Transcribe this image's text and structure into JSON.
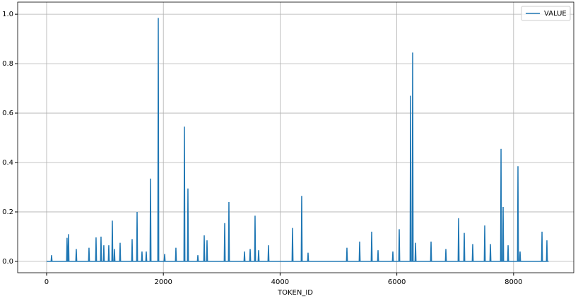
{
  "chart_data": {
    "type": "line",
    "xlabel": "TOKEN_ID",
    "x": [
      0,
      77,
      85,
      93,
      342,
      350,
      358,
      367,
      375,
      383,
      500,
      508,
      516,
      718,
      726,
      734,
      839,
      847,
      855,
      924,
      932,
      940,
      972,
      980,
      988,
      1057,
      1065,
      1073,
      1118,
      1126,
      1134,
      1154,
      1162,
      1170,
      1251,
      1259,
      1267,
      1457,
      1465,
      1473,
      1542,
      1550,
      1558,
      1626,
      1634,
      1642,
      1699,
      1707,
      1715,
      1772,
      1780,
      1788,
      1905,
      1913,
      1921,
      2014,
      2022,
      2030,
      2207,
      2215,
      2223,
      2353,
      2361,
      2369,
      2413,
      2421,
      2429,
      2583,
      2591,
      2599,
      2692,
      2700,
      2708,
      2740,
      2748,
      2756,
      3043,
      3051,
      3059,
      3115,
      3123,
      3131,
      3382,
      3390,
      3398,
      3479,
      3487,
      3495,
      3563,
      3571,
      3579,
      3624,
      3632,
      3640,
      3793,
      3801,
      3809,
      4205,
      4213,
      4221,
      4362,
      4370,
      4378,
      4471,
      4479,
      4487,
      5137,
      5145,
      5153,
      5355,
      5363,
      5371,
      5561,
      5569,
      5577,
      5670,
      5678,
      5686,
      5924,
      5932,
      5940,
      6033,
      6041,
      6049,
      6227,
      6235,
      6243,
      6263,
      6271,
      6279,
      6312,
      6320,
      6328,
      6578,
      6586,
      6594,
      6832,
      6840,
      6848,
      7050,
      7058,
      7066,
      7147,
      7155,
      7163,
      7292,
      7300,
      7308,
      7498,
      7506,
      7514,
      7595,
      7603,
      7611,
      7777,
      7785,
      7793,
      7813,
      7821,
      7829,
      7898,
      7906,
      7914,
      8067,
      8075,
      8083,
      8103,
      8111,
      8119,
      8479,
      8487,
      8495,
      8563,
      8571,
      8579,
      8600
    ],
    "series": [
      {
        "name": "VALUE",
        "color": "#1f77b4",
        "values": [
          0,
          0,
          0.025,
          0,
          0,
          0.095,
          0,
          0,
          0.11,
          0,
          0,
          0.05,
          0,
          0,
          0.055,
          0,
          0,
          0.097,
          0,
          0,
          0.1,
          0,
          0,
          0.065,
          0,
          0,
          0.065,
          0,
          0,
          0.165,
          0,
          0,
          0.05,
          0,
          0,
          0.075,
          0,
          0,
          0.09,
          0,
          0,
          0.2,
          0,
          0,
          0.04,
          0,
          0,
          0.04,
          0,
          0,
          0.335,
          0,
          0,
          0.985,
          0,
          0,
          0.03,
          0,
          0,
          0.055,
          0,
          0,
          0.545,
          0,
          0,
          0.295,
          0,
          0,
          0.025,
          0,
          0,
          0.105,
          0,
          0,
          0.085,
          0,
          0,
          0.155,
          0,
          0,
          0.24,
          0,
          0,
          0.04,
          0,
          0,
          0.05,
          0,
          0,
          0.185,
          0,
          0,
          0.045,
          0,
          0,
          0.065,
          0,
          0,
          0.135,
          0,
          0,
          0.265,
          0,
          0,
          0.035,
          0,
          0,
          0.055,
          0,
          0,
          0.08,
          0,
          0,
          0.12,
          0,
          0,
          0.045,
          0,
          0,
          0.04,
          0,
          0,
          0.13,
          0,
          0,
          0.67,
          0,
          0,
          0.845,
          0,
          0,
          0.075,
          0,
          0,
          0.08,
          0,
          0,
          0.05,
          0,
          0,
          0.175,
          0,
          0,
          0.115,
          0,
          0,
          0.07,
          0,
          0,
          0.145,
          0,
          0,
          0.07,
          0,
          0,
          0.455,
          0,
          0,
          0.22,
          0,
          0,
          0.065,
          0,
          0,
          0.385,
          0,
          0,
          0.04,
          0,
          0,
          0.12,
          0,
          0,
          0.085,
          0,
          0
        ]
      }
    ],
    "xlim": [
      -496,
      9031
    ],
    "xticks": [
      0,
      2000,
      4000,
      6000,
      8000
    ],
    "ylim": [
      -0.046,
      1.049
    ],
    "yticks": [
      {
        "value": 0,
        "label": "0.0"
      },
      {
        "value": 0.2,
        "label": "0.2"
      },
      {
        "value": 0.4,
        "label": "0.4"
      },
      {
        "value": 0.6,
        "label": "0.6"
      },
      {
        "value": 0.8,
        "label": "0.8"
      },
      {
        "value": 1.0,
        "label": "1.0"
      }
    ],
    "grid": true,
    "legend": "upper right"
  }
}
